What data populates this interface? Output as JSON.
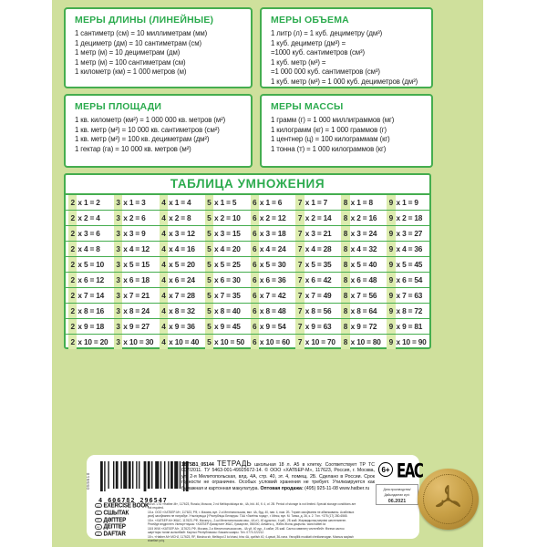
{
  "page": {
    "background_green": "#cfe09c",
    "accent_green": "#2cab4e",
    "border_green": "#45ad4f",
    "stripe_green": "#dcecae",
    "medal_gold": "#c79f45"
  },
  "measures": [
    {
      "title": "МЕРЫ ДЛИНЫ (ЛИНЕЙНЫЕ)",
      "lines": [
        "1 сантиметр (см) = 10 миллиметрам (мм)",
        "1 дециметр (дм) = 10 сантиметрам (см)",
        "1 метр (м) = 10 дециметрам (дм)",
        "1 метр (м) = 100 сантиметрам (см)",
        "1 километр (км) = 1 000 метров (м)"
      ]
    },
    {
      "title": "МЕРЫ ОБЪЕМА",
      "lines": [
        "1 литр (л) = 1 куб. дециметру (дм³)",
        "1 куб. дециметр (дм³) =",
        "=1000 куб. сантиметров (см³)",
        "1 куб. метр (м³) =",
        "=1 000 000 куб. сантиметров (см³)",
        "1 куб. метр (м³) = 1 000 куб. дециметров (дм³)"
      ]
    },
    {
      "title": "МЕРЫ ПЛОЩАДИ",
      "lines": [
        "1 кв. километр (км²) = 1 000 000 кв. метров (м²)",
        "1 кв. метр (м²) = 10 000 кв. сантиметров (см²)",
        "1 кв. метр (м²) = 100 кв. дециметрам (дм²)",
        "1 гектар (га) = 10 000 кв. метров (м²)"
      ]
    },
    {
      "title": "МЕРЫ МАССЫ",
      "lines": [
        "1 грамм (г) = 1 000 миллиграммов (мг)",
        "1 килограмм (кг) = 1 000 граммов (г)",
        "1 центнер (ц) = 100 килограммам (кг)",
        "1 тонна (т) = 1 000 килограммов (кг)"
      ]
    }
  ],
  "multiplication_table": {
    "title": "ТАБЛИЦА УМНОЖЕНИЯ",
    "factors": [
      2,
      3,
      4,
      5,
      6,
      7,
      8,
      9
    ],
    "multipliers": [
      1,
      2,
      3,
      4,
      5,
      6,
      7,
      8,
      9,
      10
    ],
    "products": [
      [
        2,
        3,
        4,
        5,
        6,
        7,
        8,
        9
      ],
      [
        4,
        6,
        8,
        10,
        12,
        14,
        16,
        18
      ],
      [
        6,
        9,
        12,
        15,
        18,
        21,
        24,
        27
      ],
      [
        8,
        12,
        16,
        20,
        24,
        28,
        32,
        36
      ],
      [
        10,
        15,
        20,
        25,
        30,
        35,
        40,
        45
      ],
      [
        12,
        18,
        24,
        30,
        36,
        42,
        48,
        54
      ],
      [
        14,
        21,
        28,
        35,
        42,
        49,
        56,
        63
      ],
      [
        16,
        24,
        32,
        40,
        48,
        56,
        64,
        72
      ],
      [
        18,
        27,
        36,
        45,
        54,
        63,
        72,
        81
      ],
      [
        20,
        30,
        40,
        50,
        60,
        70,
        80,
        90
      ]
    ]
  },
  "footer": {
    "side_number": "055610",
    "barcode_digits": "4 606782 296547",
    "languages": [
      {
        "code": "en",
        "label": "EXERCISE BOOK"
      },
      {
        "code": "by",
        "label": "СШЫТАК"
      },
      {
        "code": "kz",
        "label": "ДӘПТЕР"
      },
      {
        "code": "kg",
        "label": "ДЕПТЕР"
      },
      {
        "code": "uz",
        "label": "DAFTAR"
      }
    ],
    "info_code": "18Т5В1_05144",
    "info_title": "ТЕТРАДЬ",
    "info_text": "школьная 18 л. А5 в клетку. Соответствует ТР ТС 007/2011. ТУ 5463-001-49925672-14. © ООО «ХАТБЕР-М», 117623, Россия, г. Москва, ул. 2-я Мелитопольская, влд. 4А, стр. 40, эт. 4, помещ. 2Б. Сделано в России. Срок годности не ограничен. Особых условий хранения не требует. Утилизируется как бумажная и картонная макулатура.",
    "wholesale_label": "Оптовая продажа:",
    "wholesale_value": "(495) 925-11-08 www.hatber.ru",
    "age_mark": "6+",
    "eac_mark": "ЕАС",
    "date_label": "Дата производства/",
    "date_label2": "Дайындалған күні:",
    "date_value": "06.2021",
    "legal_lines": [
      "18 sh. LTD «Hatber-M», 117623, Russia, Moscow, 2 nd Melitopolskaya str., 4A, bld. 40, fl. 4, of. 2B. Period of storage is not limited. Special storage conditions are not required.",
      "18 а. ООО «ХАТБЕР-М», 117623, РФ, г. Масква, вул. 2-я Мелітапольская, вял. 4А, буд. 40, пав. 4, пам. 2Б. Тэрмін захоўвання не абмежаваны. Асаблівых умоў захоўвання не патрабуе. Утылізуецца ў Рэспубліцы Беларусь: ТАА «Зялёны горад», г. Мінск, вул. М. Танка, д. 36, к. 2. Тэл. +375 (17) 280-6565.",
      "18 п. «ХАТБЕР-М» ЖШС, 117623, РФ, Мәскеу қ., 2-ші Мелитопольская көш., 4А-н1, 40 құрылыс, 4 қаб., 2Б жай. Жарамдылық мерзімі шектелмеген. Ресейде өндірілген. Импорттаушы: «ХАТБЕР-Қазақстан» ЖШС, Қазақстан, 050000, Алматы қ., Жібек Жолы даңғылы. www.hatber.kz",
      "18.5 ЖЧК «ХАТБЕР-М», 117623, РФ, Москва, 2-я Мелитопольская көч., 4А үй, 40 кур., 4 кабат, 2Б жай. Сактоо мөөнөтү чектелбейт. Өзгөчө сактоо шарттары талап кылынбайт. Кыргыз Республикасы: Бишкек шаары. Тел. 0774 222212.",
      "18 v. «Hatber-M» MCHJ, 117623, RF, Moskva sh, Melitopol 2 ko'chasi, bino 4A, qurilish 40, 4-qavat, 36-xona. Yaroqlilik muddati cheklanmagan. Maxsus saqlash shartlari yo'q."
    ]
  }
}
